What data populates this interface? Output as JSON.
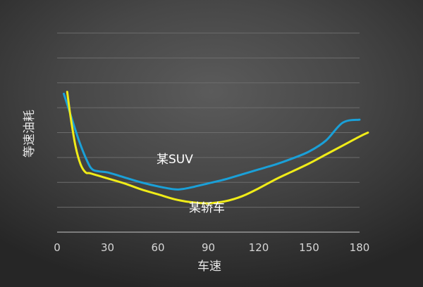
{
  "chart_data": {
    "type": "line",
    "xlabel": "车速",
    "ylabel": "等速油耗",
    "xlim": [
      0,
      180
    ],
    "ylim": [
      0,
      10
    ],
    "x_ticks": [
      0,
      30,
      60,
      90,
      120,
      150,
      180
    ],
    "y_tick_labels_shown": false,
    "grid": true,
    "legend": "inline-labels",
    "series": [
      {
        "name": "某SUV",
        "color": "#1aa0d8",
        "x": [
          4,
          8,
          13,
          18,
          21,
          25,
          30,
          40,
          50,
          60,
          70,
          75,
          80,
          90,
          100,
          110,
          120,
          130,
          140,
          150,
          160,
          170,
          180
        ],
        "y": [
          6.95,
          5.9,
          4.6,
          3.55,
          3.15,
          3.05,
          3.0,
          2.75,
          2.5,
          2.3,
          2.15,
          2.17,
          2.25,
          2.45,
          2.65,
          2.9,
          3.15,
          3.4,
          3.7,
          4.05,
          4.6,
          5.5,
          5.65
        ]
      },
      {
        "name": "某轿车",
        "color": "#f0ec18",
        "x": [
          6,
          8,
          11,
          14,
          17,
          20,
          30,
          40,
          50,
          60,
          70,
          80,
          90,
          100,
          110,
          120,
          130,
          140,
          150,
          160,
          170,
          180,
          185
        ],
        "y": [
          7.05,
          5.8,
          4.3,
          3.4,
          3.0,
          2.95,
          2.7,
          2.45,
          2.15,
          1.9,
          1.65,
          1.5,
          1.45,
          1.55,
          1.8,
          2.2,
          2.65,
          3.05,
          3.45,
          3.9,
          4.35,
          4.8,
          5.0
        ]
      }
    ]
  }
}
